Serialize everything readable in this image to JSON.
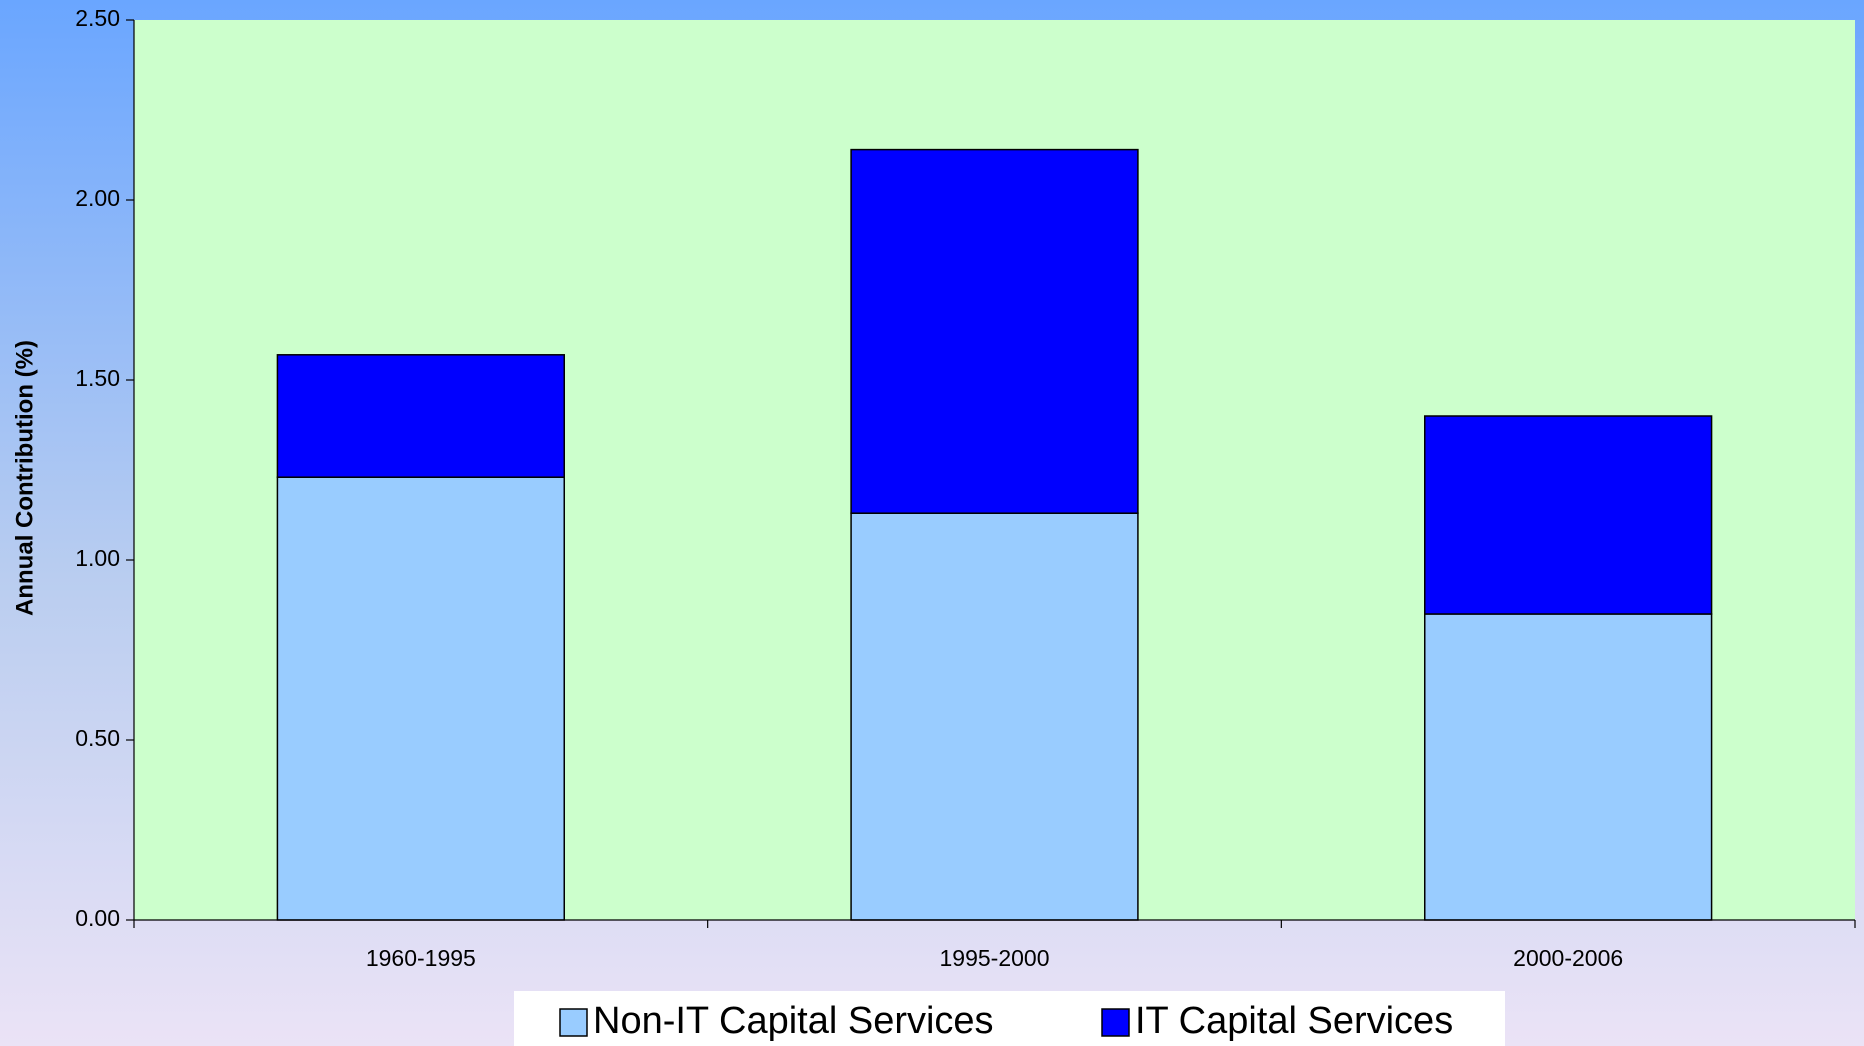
{
  "chart_data": {
    "type": "bar",
    "stacked": true,
    "y_label": "Annual Contribution (%)",
    "categories": [
      "1960-1995",
      "1995-2000",
      "2000-2006"
    ],
    "series": [
      {
        "name": "Non-IT Capital Services",
        "color": "#99ccff",
        "values": [
          1.23,
          1.13,
          0.85
        ]
      },
      {
        "name": "IT Capital Services",
        "color": "#0000ff",
        "values": [
          0.34,
          1.01,
          0.55
        ]
      }
    ],
    "ylim": [
      0,
      2.5
    ],
    "yticks": [
      {
        "value": 0,
        "label": "0.00"
      },
      {
        "value": 0.5,
        "label": "0.50"
      },
      {
        "value": 1,
        "label": "1.00"
      },
      {
        "value": 1.5,
        "label": "1.50"
      },
      {
        "value": 2,
        "label": "2.00"
      },
      {
        "value": 2.5,
        "label": "2.50"
      }
    ],
    "legend": "bottom",
    "plot_background": "#ccffcc"
  }
}
